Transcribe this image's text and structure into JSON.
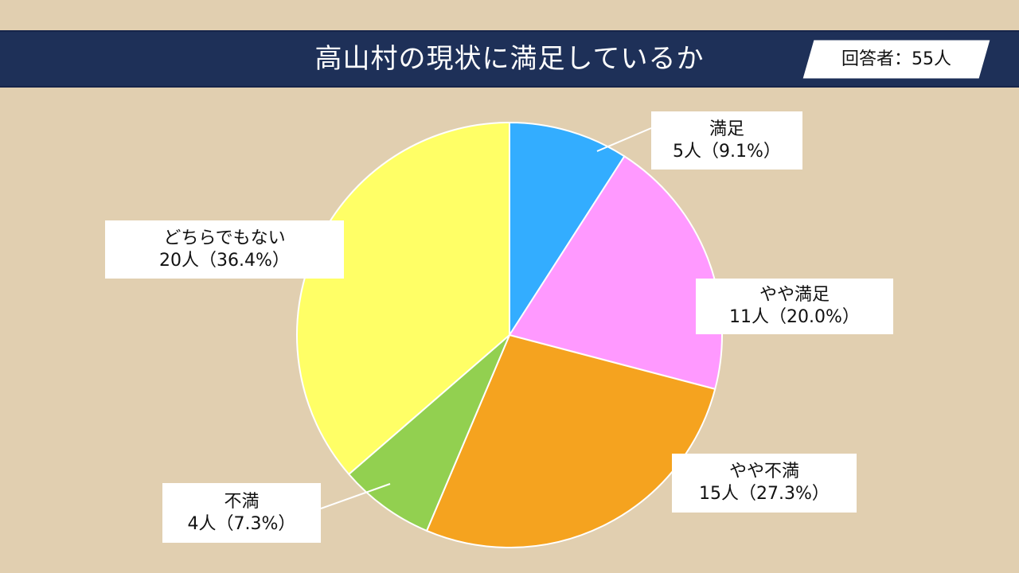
{
  "header": {
    "title": "高山村の現状に満足しているか",
    "respondents": "回答者：55人"
  },
  "colors": {
    "header_bg": "#1e3058",
    "background": "#e1cfb0"
  },
  "chart_data": {
    "type": "pie",
    "title": "高山村の現状に満足しているか",
    "total": 55,
    "start_angle_deg": 0,
    "direction": "clockwise",
    "slices": [
      {
        "label": "満足",
        "count": 5,
        "percent": 9.1,
        "value_text": "5人（9.1%）",
        "color": "#33adff"
      },
      {
        "label": "やや満足",
        "count": 11,
        "percent": 20.0,
        "value_text": "11人（20.0%）",
        "color": "#ff99ff"
      },
      {
        "label": "やや不満",
        "count": 15,
        "percent": 27.3,
        "value_text": "15人（27.3%）",
        "color": "#f5a31f"
      },
      {
        "label": "不満",
        "count": 4,
        "percent": 7.3,
        "value_text": "4人（7.3%）",
        "color": "#92d050"
      },
      {
        "label": "どちらでもない",
        "count": 20,
        "percent": 36.4,
        "value_text": "20人（36.4%）",
        "color": "#ffff66"
      }
    ]
  }
}
